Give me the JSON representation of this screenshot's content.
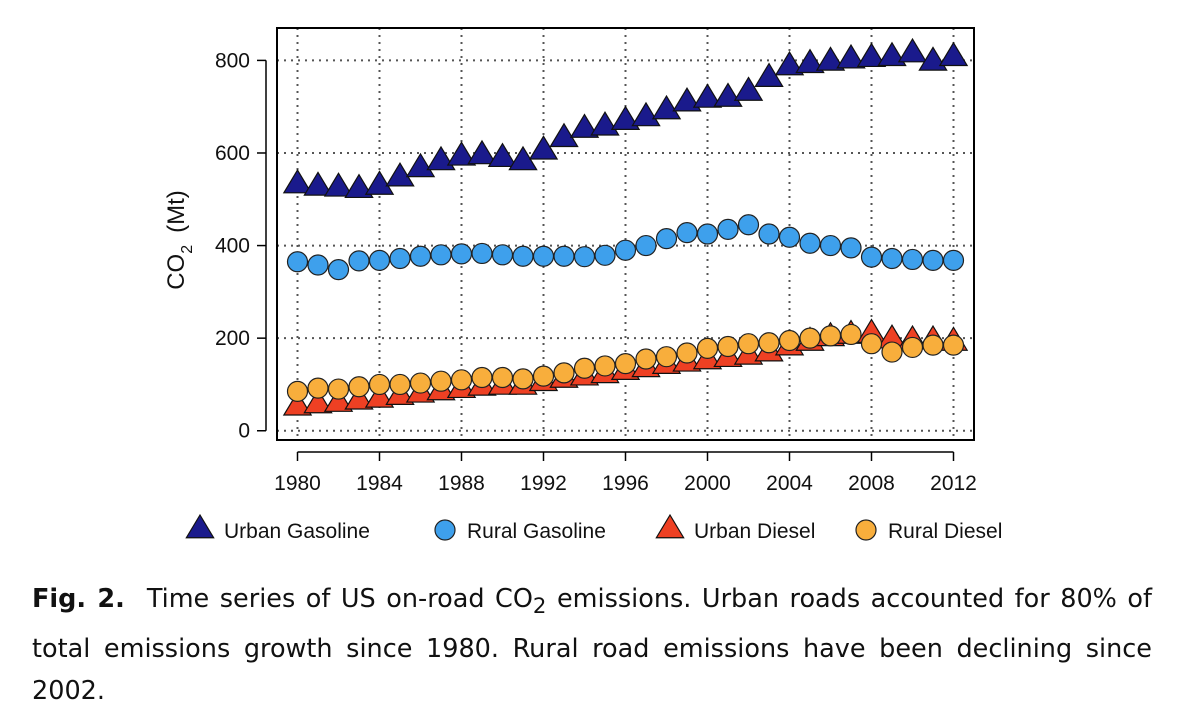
{
  "caption": {
    "label": "Fig. 2.",
    "text_before_sub": "Time series of US on-road CO",
    "sub": "2",
    "text_after_sub": " emissions. Urban roads accounted for 80% of total emissions growth since 1980. Rural road emissions have been declining since 2002."
  },
  "chart_data": {
    "type": "scatter",
    "title": "",
    "xlabel": "",
    "ylabel_main": "CO",
    "ylabel_sub": "2",
    "ylabel_unit": "(Mt)",
    "xlim": [
      1979,
      2013
    ],
    "ylim": [
      -20,
      870
    ],
    "xticks": [
      1980,
      1984,
      1988,
      1992,
      1996,
      2000,
      2004,
      2008,
      2012
    ],
    "yticks": [
      0,
      200,
      400,
      600,
      800
    ],
    "grid": true,
    "legend_position": "bottom",
    "x": [
      1980,
      1981,
      1982,
      1983,
      1984,
      1985,
      1986,
      1987,
      1988,
      1989,
      1990,
      1991,
      1992,
      1993,
      1994,
      1995,
      1996,
      1997,
      1998,
      1999,
      2000,
      2001,
      2002,
      2003,
      2004,
      2005,
      2006,
      2007,
      2008,
      2009,
      2010,
      2011,
      2012
    ],
    "series": [
      {
        "name": "Urban Gasoline",
        "marker": "triangle",
        "color": "#1a1a8c",
        "values": [
          535,
          530,
          528,
          525,
          532,
          550,
          570,
          585,
          595,
          598,
          592,
          585,
          608,
          635,
          655,
          660,
          672,
          680,
          695,
          712,
          720,
          722,
          735,
          765,
          790,
          795,
          800,
          805,
          808,
          810,
          818,
          800,
          810
        ]
      },
      {
        "name": "Rural Gasoline",
        "marker": "circle",
        "color": "#3ea0ec",
        "values": [
          365,
          358,
          348,
          367,
          368,
          372,
          377,
          380,
          382,
          383,
          380,
          377,
          377,
          377,
          376,
          379,
          390,
          400,
          415,
          428,
          425,
          435,
          445,
          425,
          418,
          405,
          400,
          395,
          375,
          372,
          370,
          368,
          368
        ]
      },
      {
        "name": "Urban Diesel",
        "marker": "triangle",
        "color": "#ee4023",
        "values": [
          55,
          60,
          63,
          68,
          72,
          78,
          83,
          88,
          93,
          98,
          100,
          100,
          108,
          115,
          120,
          125,
          132,
          138,
          145,
          150,
          155,
          160,
          165,
          172,
          185,
          195,
          205,
          210,
          212,
          200,
          198,
          198,
          195
        ]
      },
      {
        "name": "Rural Diesel",
        "marker": "circle",
        "color": "#f8ae3c",
        "values": [
          85,
          92,
          90,
          95,
          100,
          100,
          103,
          107,
          110,
          115,
          115,
          112,
          118,
          125,
          135,
          140,
          145,
          155,
          160,
          168,
          178,
          182,
          188,
          190,
          195,
          200,
          205,
          208,
          188,
          170,
          180,
          185,
          185
        ]
      }
    ]
  }
}
